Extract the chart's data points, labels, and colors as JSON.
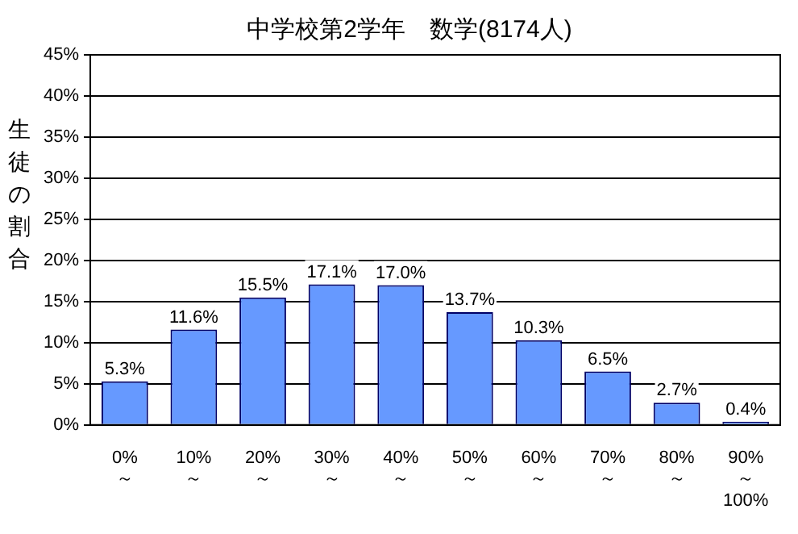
{
  "chart_data": {
    "type": "bar",
    "title": "中学校第2学年　数学(8174人)",
    "ylabel": "生徒の割合",
    "categories": [
      "0%\n～",
      "10%\n～",
      "20%\n～",
      "30%\n～",
      "40%\n～",
      "50%\n～",
      "60%\n～",
      "70%\n～",
      "80%\n～",
      "90%\n～\n100%"
    ],
    "values": [
      5.3,
      11.6,
      15.5,
      17.1,
      17.0,
      13.7,
      10.3,
      6.5,
      2.7,
      0.4
    ],
    "value_labels": [
      "5.3%",
      "11.6%",
      "15.5%",
      "17.1%",
      "17.0%",
      "13.7%",
      "10.3%",
      "6.5%",
      "2.7%",
      "0.4%"
    ],
    "color": "#6699ff",
    "ylim": [
      0,
      45
    ],
    "yticks": [
      {
        "value": 0,
        "label": "0%"
      },
      {
        "value": 5,
        "label": "5%"
      },
      {
        "value": 10,
        "label": "10%"
      },
      {
        "value": 15,
        "label": "15%"
      },
      {
        "value": 20,
        "label": "20%"
      },
      {
        "value": 25,
        "label": "25%"
      },
      {
        "value": 30,
        "label": "30%"
      },
      {
        "value": 35,
        "label": "35%"
      },
      {
        "value": 40,
        "label": "40%"
      },
      {
        "value": 45,
        "label": "45%"
      }
    ],
    "grid": "y",
    "legend": false
  }
}
